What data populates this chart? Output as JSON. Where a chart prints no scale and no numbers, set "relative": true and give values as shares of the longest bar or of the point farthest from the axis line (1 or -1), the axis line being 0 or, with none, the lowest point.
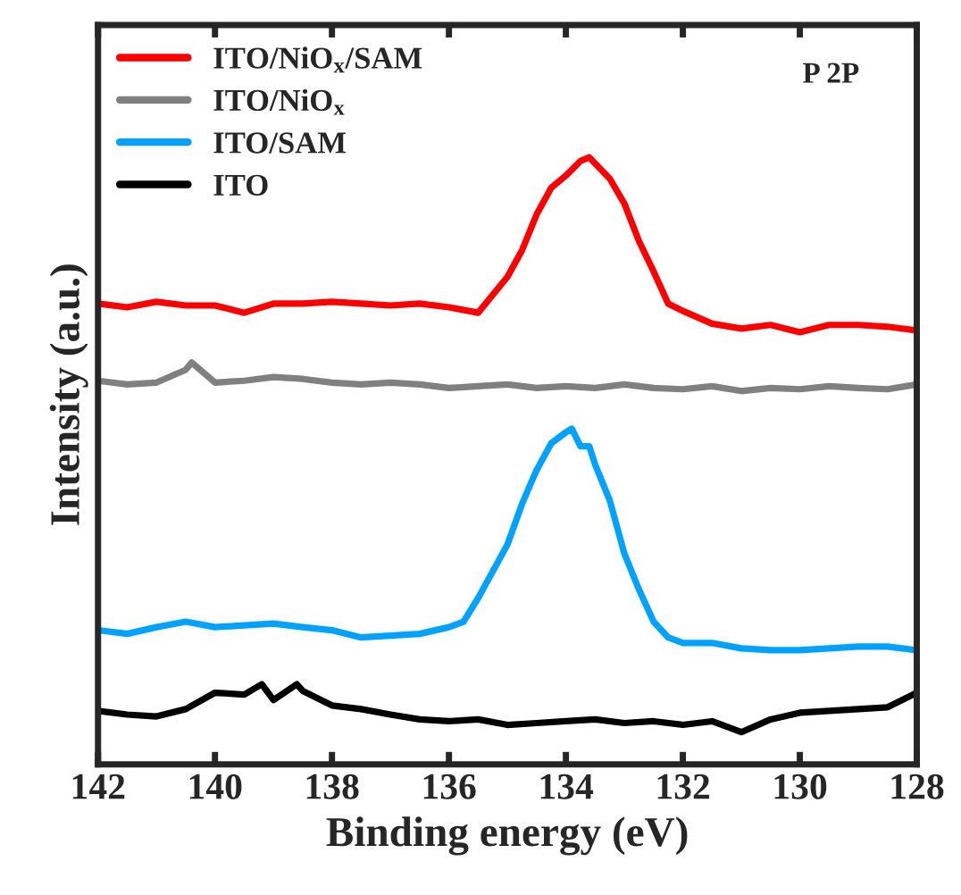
{
  "chart_data": {
    "type": "line",
    "relative": true,
    "xlabel": "Binding energy (eV)",
    "ylabel": "Intensity (a.u.)",
    "annotations": [
      "P 2P"
    ],
    "xlim": [
      142,
      128
    ],
    "xticks": [
      142,
      140,
      138,
      136,
      134,
      132,
      130,
      128
    ],
    "legend": "top left",
    "grid": false,
    "marker": "none",
    "line_style": "solid",
    "series": [
      {
        "name": "ITO/NiO$_{x}$/SAM",
        "color": "#ff0000",
        "x": [
          142,
          141.5,
          141,
          140.5,
          140,
          139.5,
          139,
          138.5,
          138,
          137.5,
          137,
          136.5,
          136,
          135.5,
          135,
          134.75,
          134.5,
          134.25,
          134,
          133.75,
          133.6,
          133.25,
          133,
          132.75,
          132.5,
          132.25,
          132,
          131.5,
          131,
          130.5,
          130,
          129.5,
          129,
          128.5,
          128
        ],
        "values": [
          0.759,
          0.753,
          0.762,
          0.756,
          0.756,
          0.744,
          0.759,
          0.759,
          0.762,
          0.759,
          0.756,
          0.759,
          0.753,
          0.744,
          0.803,
          0.847,
          0.906,
          0.95,
          0.97,
          0.994,
          1.0,
          0.965,
          0.924,
          0.862,
          0.812,
          0.759,
          0.747,
          0.726,
          0.718,
          0.724,
          0.712,
          0.724,
          0.724,
          0.721,
          0.715
        ]
      },
      {
        "name": "ITO/NiO$_{x}$",
        "color": "#808080",
        "x": [
          142,
          141.5,
          141,
          140.5,
          140.4,
          140,
          139.5,
          139,
          138.5,
          138,
          137.5,
          137,
          136.5,
          136,
          135.5,
          135,
          134.5,
          134,
          133.5,
          133,
          132.5,
          132,
          131.5,
          131,
          130.5,
          130,
          129.5,
          129,
          128.5,
          128
        ],
        "values": [
          0.632,
          0.626,
          0.629,
          0.65,
          0.662,
          0.629,
          0.632,
          0.638,
          0.635,
          0.629,
          0.626,
          0.629,
          0.626,
          0.62,
          0.623,
          0.626,
          0.62,
          0.623,
          0.62,
          0.626,
          0.62,
          0.618,
          0.623,
          0.615,
          0.62,
          0.618,
          0.623,
          0.62,
          0.618,
          0.626
        ]
      },
      {
        "name": "ITO/SAM",
        "color": "#00a2ff",
        "x": [
          142,
          141.5,
          141,
          140.5,
          140,
          139.5,
          139,
          138.5,
          138,
          137.5,
          137,
          136.5,
          136,
          135.75,
          135.5,
          135.25,
          135,
          134.75,
          134.5,
          134.25,
          134,
          133.9,
          133.75,
          133.6,
          133.5,
          133.25,
          133,
          132.75,
          132.5,
          132.25,
          132,
          131.5,
          131,
          130.5,
          130,
          129.5,
          129,
          128.5,
          128
        ],
        "values": [
          0.221,
          0.215,
          0.226,
          0.235,
          0.226,
          0.229,
          0.232,
          0.226,
          0.221,
          0.209,
          0.212,
          0.215,
          0.226,
          0.235,
          0.274,
          0.318,
          0.362,
          0.429,
          0.485,
          0.529,
          0.547,
          0.553,
          0.524,
          0.524,
          0.494,
          0.435,
          0.347,
          0.288,
          0.235,
          0.209,
          0.2,
          0.2,
          0.191,
          0.188,
          0.188,
          0.191,
          0.194,
          0.194,
          0.188
        ]
      },
      {
        "name": "ITO",
        "color": "#000000",
        "x": [
          142,
          141.5,
          141,
          140.5,
          140,
          139.5,
          139.2,
          139,
          138.6,
          138.5,
          138,
          137.5,
          137,
          136.5,
          136,
          135.5,
          135,
          134.5,
          134,
          133.5,
          133,
          132.5,
          132,
          131.5,
          131,
          130.5,
          130,
          129.5,
          129,
          128.5,
          128
        ],
        "values": [
          0.088,
          0.082,
          0.079,
          0.091,
          0.118,
          0.115,
          0.132,
          0.106,
          0.132,
          0.121,
          0.097,
          0.091,
          0.082,
          0.074,
          0.071,
          0.074,
          0.065,
          0.068,
          0.071,
          0.074,
          0.068,
          0.071,
          0.065,
          0.071,
          0.053,
          0.074,
          0.085,
          0.088,
          0.091,
          0.094,
          0.118
        ]
      }
    ]
  }
}
